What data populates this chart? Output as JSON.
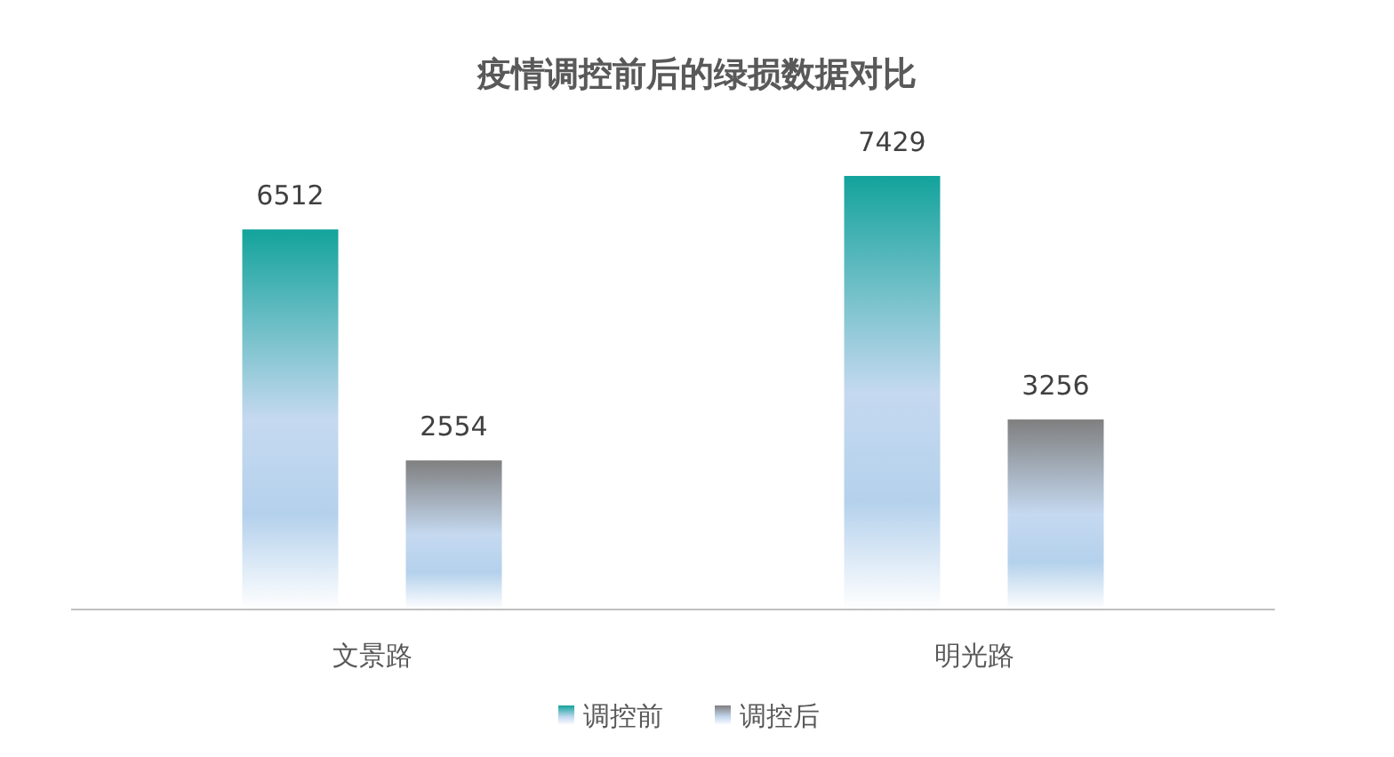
{
  "chart_data": {
    "type": "bar",
    "title": "疫情调控前后的绿损数据对比",
    "categories": [
      "文景路",
      "明光路"
    ],
    "series": [
      {
        "name": "调控前",
        "color": "#13a39c",
        "values": [
          6512,
          7429
        ]
      },
      {
        "name": "调控后",
        "color": "#7f7f7f",
        "values": [
          2554,
          3256
        ]
      }
    ],
    "data_labels": true,
    "legend": "bottom"
  }
}
